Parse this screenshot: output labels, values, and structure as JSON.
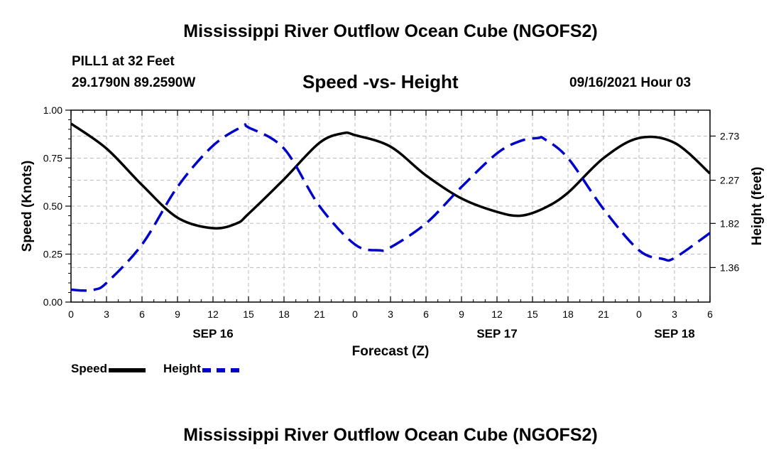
{
  "header": {
    "title": "Mississippi River Outflow Ocean Cube (NGOFS2)",
    "station": "PILL1 at 32 Feet",
    "coords": "29.1790N  89.2590W",
    "subtitle": "Speed -vs- Height",
    "timestamp": "09/16/2021 Hour 03"
  },
  "footer": {
    "title": "Mississippi River Outflow Ocean Cube (NGOFS2)"
  },
  "legend": {
    "speed_label": "Speed",
    "height_label": "Height"
  },
  "colors": {
    "speed": "#000000",
    "height": "#0000cc",
    "grid": "#bbbbbb"
  },
  "chart_data": {
    "type": "line",
    "xlabel": "Forecast (Z)",
    "ylabel": "Speed (Knots)",
    "y2label": "Height (feet)",
    "x_range": [
      0,
      54
    ],
    "ylim": [
      0,
      1
    ],
    "y2lim": [
      1.0,
      3.0
    ],
    "x_ticks": [
      0,
      3,
      6,
      9,
      12,
      15,
      18,
      21,
      24,
      27,
      30,
      33,
      36,
      39,
      42,
      45,
      48,
      51,
      54
    ],
    "x_tick_labels": [
      "0",
      "3",
      "6",
      "9",
      "12",
      "15",
      "18",
      "21",
      "0",
      "3",
      "6",
      "9",
      "12",
      "15",
      "18",
      "21",
      "0",
      "3",
      "6"
    ],
    "date_labels": [
      {
        "x": 12,
        "label": "SEP 16"
      },
      {
        "x": 36,
        "label": "SEP 17"
      },
      {
        "x": 51,
        "label": "SEP 18"
      }
    ],
    "y_ticks": [
      0.0,
      0.25,
      0.5,
      0.75,
      1.0
    ],
    "y_tick_labels": [
      "0.00",
      "0.25",
      "0.50",
      "0.75",
      "1.00"
    ],
    "y2_ticks": [
      1.36,
      1.82,
      2.27,
      2.73
    ],
    "y2_tick_labels": [
      "1.36",
      "1.82",
      "2.27",
      "2.73"
    ],
    "grid": true,
    "series": [
      {
        "name": "Speed",
        "axis": "left",
        "style": "solid",
        "x": [
          0,
          3,
          6,
          9,
          12,
          14,
          15,
          18,
          21,
          23,
          24,
          27,
          30,
          33,
          36,
          38,
          40,
          42,
          45,
          48,
          51,
          54
        ],
        "y": [
          0.93,
          0.8,
          0.61,
          0.44,
          0.385,
          0.41,
          0.46,
          0.64,
          0.83,
          0.88,
          0.87,
          0.81,
          0.66,
          0.54,
          0.47,
          0.45,
          0.49,
          0.57,
          0.75,
          0.855,
          0.83,
          0.67
        ]
      },
      {
        "name": "Height",
        "axis": "right",
        "style": "dashed",
        "x": [
          0,
          1,
          2,
          3,
          6,
          9,
          12,
          14.5,
          15,
          18,
          21,
          24,
          26,
          27,
          30,
          33,
          36,
          38,
          39.5,
          40,
          42,
          45,
          48,
          50,
          51,
          54
        ],
        "y": [
          1.13,
          1.12,
          1.13,
          1.2,
          1.6,
          2.2,
          2.63,
          2.83,
          2.82,
          2.6,
          2.0,
          1.6,
          1.54,
          1.57,
          1.82,
          2.2,
          2.55,
          2.68,
          2.71,
          2.7,
          2.5,
          1.97,
          1.54,
          1.45,
          1.46,
          1.72
        ]
      }
    ]
  }
}
